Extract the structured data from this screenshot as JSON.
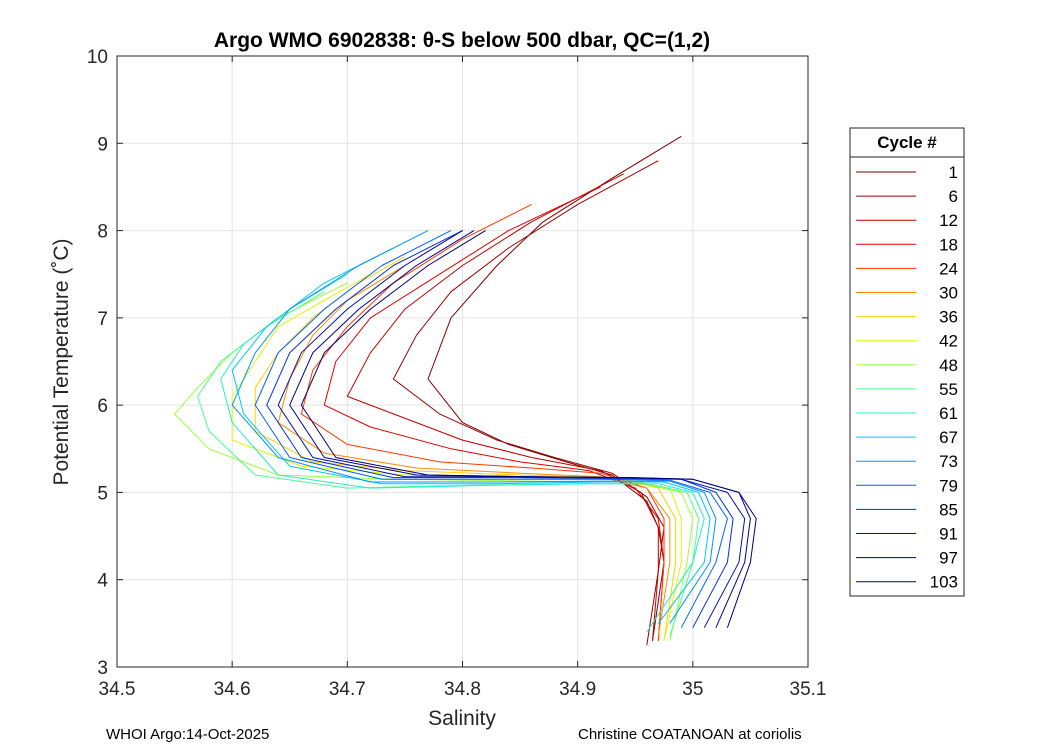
{
  "chart_data": {
    "type": "line",
    "title": "Argo WMO 6902838: θ-S below 500 dbar,  QC=(1,2)",
    "xlabel": "Salinity",
    "ylabel": "Potential Temperature (˚C)",
    "xlim": [
      34.5,
      35.1
    ],
    "ylim": [
      3,
      10
    ],
    "xticks": [
      "34.5",
      "34.6",
      "34.7",
      "34.8",
      "34.9",
      "35",
      "35.1"
    ],
    "yticks": [
      "3",
      "4",
      "5",
      "6",
      "7",
      "8",
      "9",
      "10"
    ],
    "grid": true,
    "legend_title": "Cycle #",
    "legend_position": "right-outside",
    "legend": [
      {
        "label": "1",
        "color": "#7f0000"
      },
      {
        "label": "6",
        "color": "#9c0000"
      },
      {
        "label": "12",
        "color": "#c00000"
      },
      {
        "label": "18",
        "color": "#e00000"
      },
      {
        "label": "24",
        "color": "#ff3a00"
      },
      {
        "label": "30",
        "color": "#ff8c00"
      },
      {
        "label": "36",
        "color": "#ffd200"
      },
      {
        "label": "42",
        "color": "#e2f500"
      },
      {
        "label": "48",
        "color": "#9fff3a"
      },
      {
        "label": "55",
        "color": "#4dff8a"
      },
      {
        "label": "61",
        "color": "#20f0c8"
      },
      {
        "label": "67",
        "color": "#00c8ff"
      },
      {
        "label": "73",
        "color": "#0096ff"
      },
      {
        "label": "79",
        "color": "#0060ff"
      },
      {
        "label": "85",
        "color": "#0030e0"
      },
      {
        "label": "91",
        "color": "#0010b0"
      },
      {
        "label": "97",
        "color": "#000090"
      },
      {
        "label": "103",
        "color": "#00007f"
      }
    ],
    "series": [
      {
        "name": "1",
        "color": "#7f0000",
        "s": [
          34.99,
          34.93,
          34.87,
          34.83,
          34.79,
          34.77,
          34.8,
          34.84,
          34.89,
          34.93,
          34.96,
          34.97,
          34.975,
          34.965
        ],
        "t": [
          9.08,
          8.6,
          8.1,
          7.6,
          7.0,
          6.3,
          5.8,
          5.55,
          5.35,
          5.2,
          4.9,
          4.6,
          4.2,
          3.3
        ]
      },
      {
        "name": "6",
        "color": "#9c0000",
        "s": [
          34.97,
          34.9,
          34.84,
          34.79,
          34.76,
          34.74,
          34.78,
          34.83,
          34.88,
          34.93,
          34.96,
          34.975,
          34.97,
          34.96
        ],
        "t": [
          8.8,
          8.3,
          7.8,
          7.3,
          6.8,
          6.3,
          5.9,
          5.6,
          5.4,
          5.22,
          4.95,
          4.6,
          4.1,
          3.25
        ]
      },
      {
        "name": "12",
        "color": "#c00000",
        "s": [
          34.94,
          34.86,
          34.8,
          34.75,
          34.72,
          34.7,
          34.74,
          34.8,
          34.86,
          34.92,
          34.955,
          34.97,
          34.97,
          34.965
        ],
        "t": [
          8.65,
          8.1,
          7.6,
          7.1,
          6.6,
          6.1,
          5.9,
          5.6,
          5.4,
          5.25,
          5.0,
          4.6,
          4.1,
          3.3
        ]
      },
      {
        "name": "18",
        "color": "#e00000",
        "s": [
          34.92,
          34.84,
          34.78,
          34.72,
          34.69,
          34.68,
          34.72,
          34.79,
          34.85,
          34.91,
          34.95,
          34.97,
          34.975,
          34.97
        ],
        "t": [
          8.5,
          8.0,
          7.5,
          7.0,
          6.5,
          6.0,
          5.75,
          5.5,
          5.35,
          5.25,
          5.05,
          4.7,
          4.2,
          3.3
        ]
      },
      {
        "name": "24",
        "color": "#ff3a00",
        "s": [
          34.86,
          34.8,
          34.74,
          34.7,
          34.67,
          34.66,
          34.7,
          34.78,
          34.86,
          34.92,
          34.96,
          34.975,
          34.975,
          34.97
        ],
        "t": [
          8.3,
          7.9,
          7.4,
          6.9,
          6.4,
          5.9,
          5.55,
          5.35,
          5.28,
          5.22,
          5.05,
          4.7,
          4.2,
          3.3
        ]
      },
      {
        "name": "30",
        "color": "#ff8c00",
        "s": [
          34.8,
          34.75,
          34.7,
          34.67,
          34.65,
          34.64,
          34.68,
          34.76,
          34.85,
          34.92,
          34.96,
          34.98,
          34.98,
          34.97
        ],
        "t": [
          8.0,
          7.6,
          7.2,
          6.8,
          6.3,
          5.8,
          5.45,
          5.28,
          5.22,
          5.18,
          5.05,
          4.7,
          4.2,
          3.35
        ]
      },
      {
        "name": "36",
        "color": "#ffd200",
        "s": [
          34.75,
          34.71,
          34.67,
          34.64,
          34.62,
          34.62,
          34.67,
          34.75,
          34.85,
          34.93,
          34.97,
          34.985,
          34.985,
          34.975
        ],
        "t": [
          7.7,
          7.4,
          7.0,
          6.6,
          6.2,
          5.7,
          5.35,
          5.25,
          5.2,
          5.17,
          5.05,
          4.7,
          4.2,
          3.3
        ]
      },
      {
        "name": "42",
        "color": "#e2f500",
        "s": [
          34.72,
          34.68,
          34.64,
          34.62,
          34.6,
          34.6,
          34.66,
          34.75,
          34.86,
          34.94,
          34.98,
          34.99,
          34.99,
          34.975
        ],
        "t": [
          7.5,
          7.2,
          6.9,
          6.5,
          6.1,
          5.6,
          5.3,
          5.2,
          5.17,
          5.15,
          5.05,
          4.7,
          4.2,
          3.3
        ]
      },
      {
        "name": "48",
        "color": "#9fff3a",
        "s": [
          34.7,
          34.64,
          34.6,
          34.57,
          34.55,
          34.58,
          34.64,
          34.74,
          34.86,
          34.95,
          34.99,
          35.0,
          34.995,
          34.98
        ],
        "t": [
          7.4,
          7.0,
          6.6,
          6.2,
          5.9,
          5.5,
          5.2,
          5.15,
          5.13,
          5.12,
          5.0,
          4.7,
          4.2,
          3.3
        ]
      },
      {
        "name": "55",
        "color": "#4dff8a",
        "s": [
          34.68,
          34.63,
          34.59,
          34.57,
          34.58,
          34.62,
          34.7,
          34.8,
          34.9,
          34.96,
          34.995,
          35.005,
          35.0,
          34.98
        ],
        "t": [
          7.3,
          6.9,
          6.5,
          6.1,
          5.7,
          5.2,
          5.05,
          5.08,
          5.1,
          5.1,
          5.0,
          4.7,
          4.2,
          3.35
        ]
      },
      {
        "name": "61",
        "color": "#20f0c8",
        "s": [
          34.7,
          34.65,
          34.61,
          34.59,
          34.6,
          34.64,
          34.72,
          34.82,
          34.91,
          34.97,
          35.0,
          35.01,
          35.0,
          34.96
        ],
        "t": [
          7.5,
          7.1,
          6.7,
          6.3,
          5.8,
          5.2,
          5.05,
          5.08,
          5.1,
          5.1,
          5.0,
          4.7,
          4.2,
          3.4
        ]
      },
      {
        "name": "67",
        "color": "#00c8ff",
        "s": [
          34.74,
          34.68,
          34.63,
          34.6,
          34.61,
          34.65,
          34.73,
          34.83,
          34.92,
          34.975,
          35.005,
          35.015,
          35.01,
          34.97
        ],
        "t": [
          7.8,
          7.4,
          6.9,
          6.4,
          5.9,
          5.3,
          5.1,
          5.1,
          5.12,
          5.12,
          5.0,
          4.7,
          4.2,
          3.5
        ]
      },
      {
        "name": "73",
        "color": "#0096ff",
        "s": [
          34.77,
          34.71,
          34.65,
          34.62,
          34.6,
          34.64,
          34.72,
          34.83,
          34.92,
          34.98,
          35.01,
          35.02,
          35.015,
          34.98
        ],
        "t": [
          8.0,
          7.6,
          7.1,
          6.6,
          6.0,
          5.4,
          5.12,
          5.12,
          5.13,
          5.13,
          5.0,
          4.7,
          4.2,
          3.5
        ]
      },
      {
        "name": "79",
        "color": "#0060ff",
        "s": [
          34.79,
          34.73,
          34.68,
          34.64,
          34.62,
          34.65,
          34.73,
          34.83,
          34.92,
          34.98,
          35.015,
          35.03,
          35.02,
          34.99
        ],
        "t": [
          8.0,
          7.6,
          7.1,
          6.6,
          6.0,
          5.4,
          5.15,
          5.15,
          5.15,
          5.14,
          5.0,
          4.7,
          4.2,
          3.45
        ]
      },
      {
        "name": "85",
        "color": "#0030e0",
        "s": [
          34.8,
          34.74,
          34.69,
          34.65,
          34.63,
          34.66,
          34.74,
          34.84,
          34.93,
          34.99,
          35.02,
          35.035,
          35.03,
          35.0
        ],
        "t": [
          8.0,
          7.6,
          7.1,
          6.6,
          6.0,
          5.4,
          5.17,
          5.17,
          5.16,
          5.15,
          5.0,
          4.7,
          4.2,
          3.45
        ]
      },
      {
        "name": "91",
        "color": "#0010b0",
        "s": [
          34.8,
          34.75,
          34.7,
          34.66,
          34.64,
          34.67,
          34.75,
          34.85,
          34.94,
          34.99,
          35.03,
          35.045,
          35.04,
          35.01
        ],
        "t": [
          8.0,
          7.6,
          7.1,
          6.6,
          6.0,
          5.4,
          5.18,
          5.18,
          5.17,
          5.15,
          5.0,
          4.7,
          4.2,
          3.45
        ]
      },
      {
        "name": "97",
        "color": "#000090",
        "s": [
          34.81,
          34.76,
          34.71,
          34.67,
          34.65,
          34.68,
          34.76,
          34.86,
          34.94,
          35.0,
          35.04,
          35.05,
          35.045,
          35.02
        ],
        "t": [
          8.0,
          7.6,
          7.1,
          6.6,
          6.0,
          5.4,
          5.2,
          5.18,
          5.17,
          5.15,
          5.0,
          4.7,
          4.2,
          3.45
        ]
      },
      {
        "name": "103",
        "color": "#00007f",
        "s": [
          34.82,
          34.77,
          34.72,
          34.68,
          34.66,
          34.69,
          34.77,
          34.86,
          34.95,
          35.0,
          35.04,
          35.055,
          35.05,
          35.03
        ],
        "t": [
          8.0,
          7.6,
          7.1,
          6.6,
          6.0,
          5.4,
          5.2,
          5.18,
          5.17,
          5.15,
          5.0,
          4.7,
          4.2,
          3.45
        ]
      }
    ]
  },
  "footer": {
    "left": "WHOI Argo:14-Oct-2025",
    "right": "Christine COATANOAN at coriolis"
  }
}
